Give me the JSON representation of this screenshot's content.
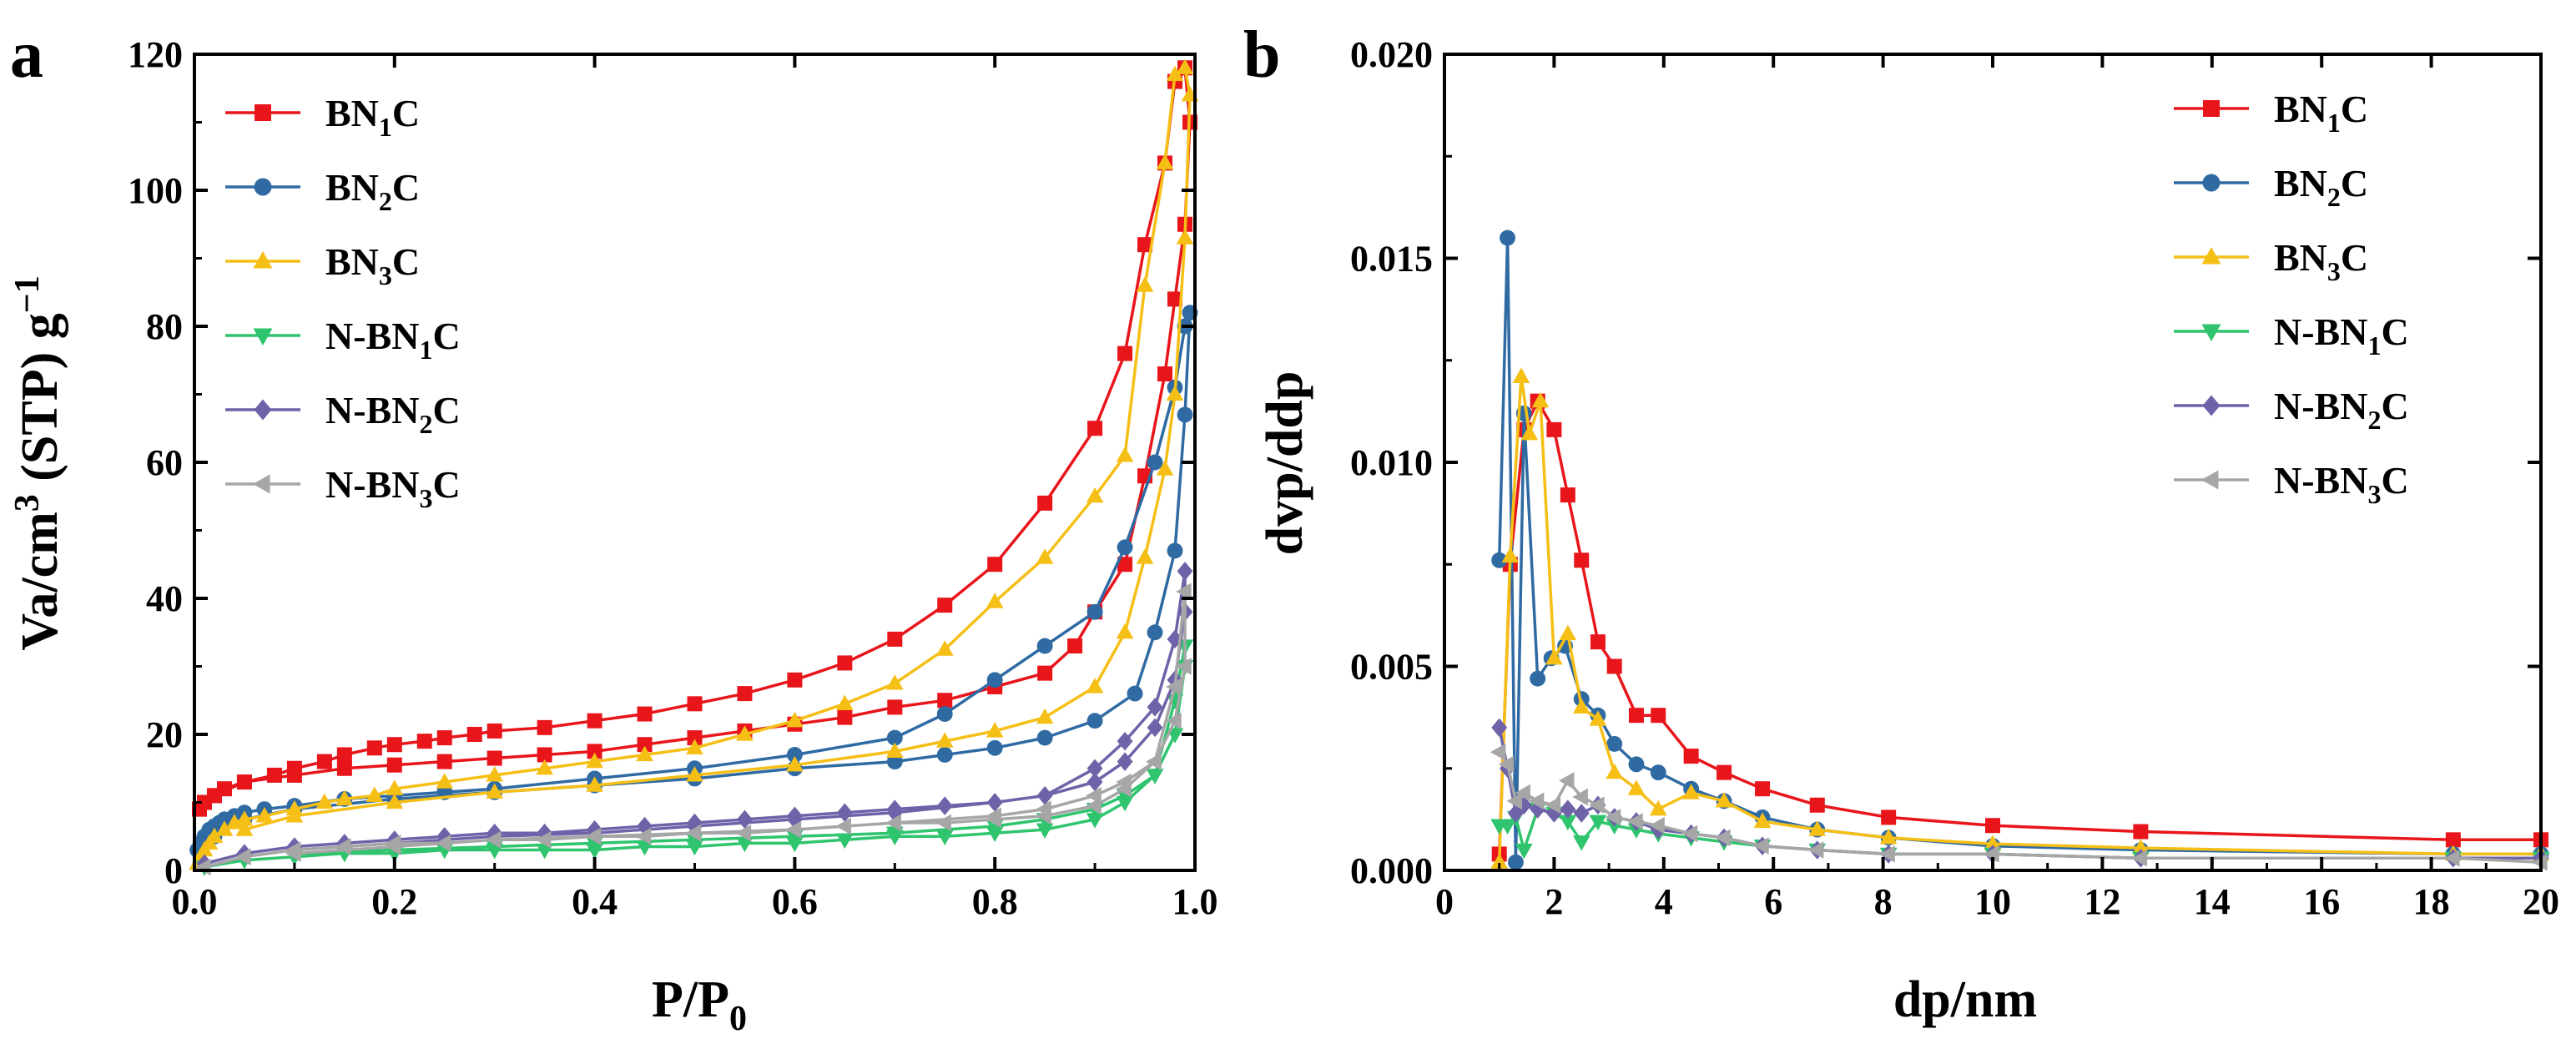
{
  "figure": {
    "colors": {
      "BN1C": "#e8151b",
      "BN2C": "#2f6aa3",
      "BN3C": "#f5bf16",
      "N-BN1C": "#2fc46e",
      "N-BN2C": "#6e63a8",
      "N-BN3C": "#a6a6a6"
    },
    "marker_shapes": {
      "BN1C": "square",
      "BN2C": "circle",
      "BN3C": "triangle-up",
      "N-BN1C": "triangle-down",
      "N-BN2C": "diamond",
      "N-BN3C": "triangle-left"
    }
  },
  "chart_data": [
    {
      "panel": "a",
      "type": "line",
      "xlabel": "P/P",
      "xlabel_sub": "0",
      "ylabel": "Va/cm",
      "ylabel_sup": "3",
      "ylabel_mid": " (STP) g",
      "ylabel_sup2": "−1",
      "xlim": [
        0.0,
        1.0
      ],
      "ylim": [
        0,
        120
      ],
      "xticks": [
        "0.0",
        "0.2",
        "0.4",
        "0.6",
        "0.8",
        "1.0"
      ],
      "yticks": [
        "0",
        "20",
        "40",
        "60",
        "80",
        "100",
        "120"
      ],
      "legend_position": "top-left",
      "series": [
        {
          "key": "BN1C",
          "name": "BN",
          "sub": "1",
          "suffix": "C",
          "x": [
            0.005,
            0.01,
            0.02,
            0.03,
            0.05,
            0.08,
            0.1,
            0.13,
            0.15,
            0.18,
            0.2,
            0.23,
            0.25,
            0.28,
            0.3,
            0.35,
            0.4,
            0.45,
            0.5,
            0.55,
            0.6,
            0.65,
            0.7,
            0.75,
            0.8,
            0.85,
            0.9,
            0.93,
            0.95,
            0.97,
            0.98,
            0.99,
            0.995,
            0.99,
            0.98,
            0.97,
            0.95,
            0.93,
            0.9,
            0.88,
            0.85,
            0.8,
            0.75,
            0.7,
            0.65,
            0.6,
            0.55,
            0.5,
            0.45,
            0.4,
            0.35,
            0.3,
            0.25,
            0.2,
            0.15,
            0.1,
            0.05,
            0.02
          ],
          "y": [
            9,
            10,
            11,
            12,
            13,
            14,
            15,
            16,
            17,
            18,
            18.5,
            19,
            19.5,
            20,
            20.5,
            21,
            22,
            23,
            24.5,
            26,
            28,
            30.5,
            34,
            39,
            45,
            54,
            65,
            76,
            92,
            104,
            116,
            118,
            110,
            95,
            84,
            73,
            58,
            45,
            38,
            33,
            29,
            27,
            25,
            24,
            22.5,
            21.5,
            20.5,
            19.5,
            18.5,
            17.5,
            17,
            16.5,
            16,
            15.5,
            15,
            14,
            13,
            11
          ]
        },
        {
          "key": "BN2C",
          "name": "BN",
          "sub": "2",
          "suffix": "C",
          "x": [
            0.003,
            0.006,
            0.01,
            0.015,
            0.02,
            0.025,
            0.03,
            0.04,
            0.05,
            0.07,
            0.1,
            0.15,
            0.2,
            0.25,
            0.3,
            0.4,
            0.5,
            0.6,
            0.7,
            0.75,
            0.8,
            0.85,
            0.9,
            0.93,
            0.96,
            0.98,
            0.99,
            0.995,
            0.99,
            0.98,
            0.96,
            0.94,
            0.9,
            0.85,
            0.8,
            0.75,
            0.7,
            0.6,
            0.5,
            0.4,
            0.3,
            0.2,
            0.1,
            0.05,
            0.02
          ],
          "y": [
            3,
            4,
            5,
            6,
            6.5,
            7,
            7.5,
            8,
            8.5,
            9,
            9.5,
            10.5,
            11,
            11.5,
            12,
            13.5,
            15,
            17,
            19.5,
            23,
            28,
            33,
            38,
            47.5,
            60,
            71,
            80,
            82,
            67,
            47,
            35,
            26,
            22,
            19.5,
            18,
            17,
            16,
            15,
            13.5,
            12.5,
            11.5,
            10.5,
            9,
            7.5,
            5
          ]
        },
        {
          "key": "BN3C",
          "name": "BN",
          "sub": "3",
          "suffix": "C",
          "x": [
            0.003,
            0.006,
            0.01,
            0.015,
            0.02,
            0.03,
            0.04,
            0.05,
            0.07,
            0.1,
            0.13,
            0.15,
            0.18,
            0.2,
            0.25,
            0.3,
            0.35,
            0.4,
            0.45,
            0.5,
            0.55,
            0.6,
            0.65,
            0.7,
            0.75,
            0.8,
            0.85,
            0.9,
            0.93,
            0.95,
            0.97,
            0.98,
            0.99,
            0.995,
            0.99,
            0.98,
            0.97,
            0.95,
            0.93,
            0.9,
            0.85,
            0.8,
            0.75,
            0.7,
            0.6,
            0.5,
            0.4,
            0.3,
            0.2,
            0.1,
            0.05
          ],
          "y": [
            1,
            2,
            3,
            4,
            5,
            6,
            7,
            7.5,
            8,
            9,
            10,
            10.5,
            11,
            12,
            13,
            14,
            15,
            16,
            17,
            18,
            20,
            22,
            24.5,
            27.5,
            32.5,
            39.5,
            46,
            55,
            61,
            86,
            104,
            117,
            118,
            114,
            93,
            70,
            59,
            46,
            35,
            27,
            22.5,
            20.5,
            19,
            17.5,
            15.5,
            14,
            12.5,
            11.5,
            10,
            8,
            6
          ]
        },
        {
          "key": "N-BN1C",
          "name": "N-BN",
          "sub": "1",
          "suffix": "C",
          "x": [
            0.01,
            0.05,
            0.1,
            0.15,
            0.2,
            0.25,
            0.3,
            0.35,
            0.4,
            0.45,
            0.5,
            0.55,
            0.6,
            0.65,
            0.7,
            0.75,
            0.8,
            0.85,
            0.9,
            0.93,
            0.96,
            0.98,
            0.99,
            0.99,
            0.98,
            0.96,
            0.93,
            0.9,
            0.85,
            0.8,
            0.7,
            0.6,
            0.5,
            0.4,
            0.3,
            0.2,
            0.1
          ],
          "y": [
            0.5,
            1.5,
            2,
            2.5,
            2.5,
            3,
            3,
            3,
            3,
            3.5,
            3.5,
            4,
            4,
            4.5,
            5,
            5,
            5.5,
            6,
            7.5,
            10,
            14,
            20,
            30,
            33,
            25,
            14,
            11,
            9,
            7.5,
            6.5,
            5.5,
            5,
            4.5,
            4,
            3.5,
            3,
            2.5
          ]
        },
        {
          "key": "N-BN2C",
          "name": "N-BN",
          "sub": "2",
          "suffix": "C",
          "x": [
            0.01,
            0.05,
            0.1,
            0.15,
            0.2,
            0.25,
            0.3,
            0.35,
            0.4,
            0.45,
            0.5,
            0.55,
            0.6,
            0.65,
            0.7,
            0.75,
            0.8,
            0.85,
            0.9,
            0.93,
            0.96,
            0.98,
            0.99,
            0.99,
            0.98,
            0.96,
            0.93,
            0.9,
            0.85,
            0.8,
            0.7,
            0.6,
            0.5,
            0.4,
            0.3,
            0.2,
            0.1
          ],
          "y": [
            1,
            2.5,
            3.5,
            4,
            4.5,
            5,
            5.5,
            5.5,
            6,
            6.5,
            7,
            7.5,
            8,
            8.5,
            9,
            9.5,
            10,
            11,
            15,
            19,
            24,
            34,
            44,
            38,
            28,
            21,
            16,
            13,
            11,
            10,
            8.5,
            7.5,
            6.5,
            5.5,
            5,
            4,
            3
          ]
        },
        {
          "key": "N-BN3C",
          "name": "N-BN",
          "sub": "3",
          "suffix": "C",
          "x": [
            0.01,
            0.05,
            0.1,
            0.15,
            0.2,
            0.25,
            0.3,
            0.35,
            0.4,
            0.45,
            0.5,
            0.55,
            0.6,
            0.65,
            0.7,
            0.75,
            0.8,
            0.85,
            0.9,
            0.93,
            0.96,
            0.98,
            0.99,
            0.99,
            0.98,
            0.96,
            0.93,
            0.9,
            0.85,
            0.8,
            0.7,
            0.6,
            0.5,
            0.4,
            0.3,
            0.2,
            0.1
          ],
          "y": [
            0.5,
            2,
            3,
            3.5,
            4,
            4,
            4.5,
            4.5,
            5,
            5,
            5.5,
            5.5,
            6,
            6.5,
            7,
            7,
            7.5,
            8,
            9.5,
            12,
            16,
            22,
            30,
            41,
            27,
            16,
            13,
            11,
            9,
            8,
            7,
            6,
            5.5,
            5,
            4.5,
            3.5,
            2.5
          ]
        }
      ]
    },
    {
      "panel": "b",
      "type": "line",
      "xlabel": "dp/nm",
      "ylabel": "dvp/ddp",
      "xlim": [
        0,
        20
      ],
      "ylim": [
        0.0,
        0.02
      ],
      "xticks": [
        "0",
        "2",
        "4",
        "6",
        "8",
        "10",
        "12",
        "14",
        "16",
        "18",
        "20"
      ],
      "yticks": [
        "0.000",
        "0.005",
        "0.010",
        "0.015",
        "0.020"
      ],
      "legend_position": "top-right",
      "series": [
        {
          "key": "BN1C",
          "name": "BN",
          "sub": "1",
          "suffix": "C",
          "x": [
            1.0,
            1.2,
            1.45,
            1.7,
            2.0,
            2.25,
            2.5,
            2.8,
            3.1,
            3.5,
            3.9,
            4.5,
            5.1,
            5.8,
            6.8,
            8.1,
            10.0,
            12.7,
            18.4,
            20
          ],
          "y": [
            0.0004,
            0.0075,
            0.0108,
            0.0115,
            0.0108,
            0.0092,
            0.0076,
            0.0056,
            0.005,
            0.0038,
            0.0038,
            0.0028,
            0.0024,
            0.002,
            0.0016,
            0.0013,
            0.0011,
            0.00095,
            0.00075,
            0.00075
          ]
        },
        {
          "key": "BN2C",
          "name": "BN",
          "sub": "2",
          "suffix": "C",
          "x": [
            1.0,
            1.15,
            1.3,
            1.45,
            1.7,
            1.95,
            2.2,
            2.5,
            2.8,
            3.1,
            3.5,
            3.9,
            4.5,
            5.1,
            5.8,
            6.8,
            8.1,
            10.0,
            12.7,
            18.4,
            20
          ],
          "y": [
            0.0076,
            0.0155,
            0.0002,
            0.0112,
            0.0047,
            0.0052,
            0.0055,
            0.0042,
            0.0038,
            0.0031,
            0.0026,
            0.0024,
            0.002,
            0.0017,
            0.0013,
            0.001,
            0.0008,
            0.0006,
            0.0005,
            0.0004,
            0.0004
          ]
        },
        {
          "key": "BN3C",
          "name": "BN",
          "sub": "3",
          "suffix": "C",
          "x": [
            1.0,
            1.2,
            1.4,
            1.55,
            1.75,
            2.0,
            2.25,
            2.5,
            2.8,
            3.1,
            3.5,
            3.9,
            4.5,
            5.1,
            5.8,
            6.8,
            8.1,
            10.0,
            12.7,
            18.4,
            20
          ],
          "y": [
            0.0002,
            0.0077,
            0.0121,
            0.0107,
            0.0115,
            0.0052,
            0.0058,
            0.004,
            0.0037,
            0.0024,
            0.002,
            0.0015,
            0.0019,
            0.0017,
            0.0012,
            0.001,
            0.0008,
            0.00065,
            0.00055,
            0.0004,
            0.0004
          ]
        },
        {
          "key": "N-BN1C",
          "name": "N-BN",
          "sub": "1",
          "suffix": "C",
          "x": [
            1.0,
            1.15,
            1.3,
            1.45,
            1.7,
            2.0,
            2.25,
            2.5,
            2.8,
            3.1,
            3.5,
            3.9,
            4.5,
            5.1,
            5.8,
            6.8,
            8.1,
            10.0,
            12.7,
            18.4,
            20
          ],
          "y": [
            0.0011,
            0.0011,
            0.0013,
            0.0005,
            0.0015,
            0.0014,
            0.0012,
            0.0007,
            0.0012,
            0.0011,
            0.001,
            0.0009,
            0.0008,
            0.0007,
            0.0006,
            0.0005,
            0.0004,
            0.0004,
            0.0003,
            0.0003,
            0.0003
          ]
        },
        {
          "key": "N-BN2C",
          "name": "N-BN",
          "sub": "2",
          "suffix": "C",
          "x": [
            1.0,
            1.15,
            1.3,
            1.45,
            1.7,
            2.0,
            2.25,
            2.5,
            2.8,
            3.1,
            3.5,
            3.9,
            4.5,
            5.1,
            5.8,
            6.8,
            8.1,
            10.0,
            12.7,
            18.4,
            20
          ],
          "y": [
            0.0035,
            0.0025,
            0.0014,
            0.0016,
            0.0015,
            0.0014,
            0.0015,
            0.0014,
            0.0016,
            0.0013,
            0.0012,
            0.001,
            0.0009,
            0.0008,
            0.0006,
            0.0005,
            0.0004,
            0.0004,
            0.0003,
            0.0003,
            0.0003
          ]
        },
        {
          "key": "N-BN3C",
          "name": "N-BN",
          "sub": "3",
          "suffix": "C",
          "x": [
            1.0,
            1.15,
            1.3,
            1.45,
            1.7,
            2.0,
            2.25,
            2.5,
            2.8,
            3.1,
            3.5,
            3.9,
            4.5,
            5.1,
            5.8,
            6.8,
            8.1,
            10.0,
            12.7,
            18.4,
            20
          ],
          "y": [
            0.0029,
            0.0026,
            0.0017,
            0.0019,
            0.0017,
            0.0016,
            0.0022,
            0.0018,
            0.0016,
            0.0013,
            0.0012,
            0.0011,
            0.0009,
            0.0008,
            0.0006,
            0.0005,
            0.0004,
            0.0004,
            0.0003,
            0.0003,
            0.0002
          ]
        }
      ]
    }
  ]
}
